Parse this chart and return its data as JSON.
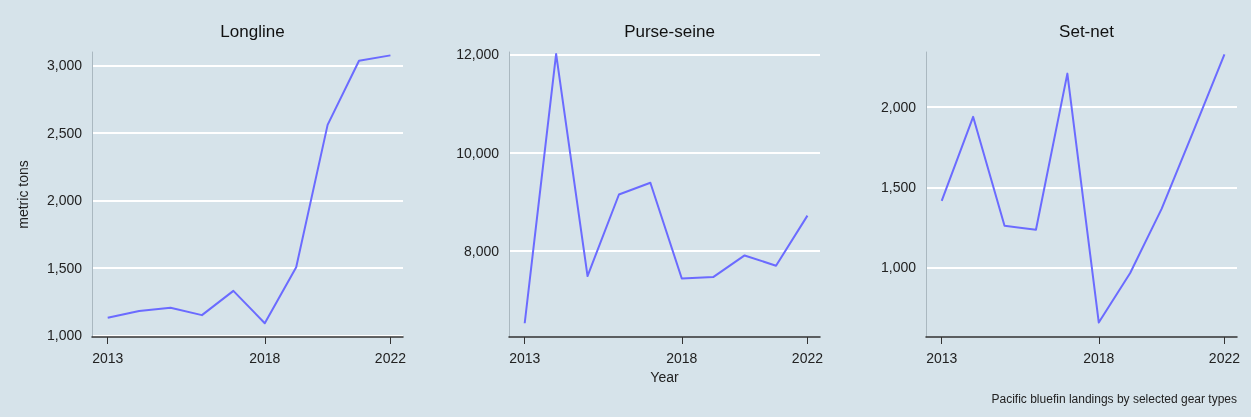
{
  "chart_data": [
    {
      "type": "line",
      "title": "Longline",
      "ylabel": "metric tons",
      "x": [
        2013,
        2014,
        2015,
        2016,
        2017,
        2018,
        2019,
        2020,
        2021,
        2022
      ],
      "xlim": [
        2012.5,
        2022.4
      ],
      "xticks": [
        2013,
        2018,
        2022
      ],
      "ylim": [
        988,
        3100
      ],
      "yticks": [
        {
          "value": 1000,
          "label": "1,000"
        },
        {
          "value": 1500,
          "label": "1,500"
        },
        {
          "value": 2000,
          "label": "2,000"
        },
        {
          "value": 2500,
          "label": "2,500"
        },
        {
          "value": 3000,
          "label": "3,000"
        }
      ],
      "grid": "y",
      "series": [
        {
          "color": "#6b6bff",
          "values": [
            1130,
            1180,
            1205,
            1150,
            1330,
            1090,
            1505,
            2560,
            3035,
            3075
          ]
        }
      ]
    },
    {
      "type": "line",
      "title": "Purse-seine",
      "xlabel": "Year",
      "x": [
        2013,
        2014,
        2015,
        2016,
        2017,
        2018,
        2019,
        2020,
        2021,
        2022
      ],
      "xlim": [
        2012.5,
        2022.4
      ],
      "xticks": [
        2013,
        2018,
        2022
      ],
      "ylim": [
        6250,
        12050
      ],
      "yticks": [
        {
          "value": 8000,
          "label": "8,000"
        },
        {
          "value": 10000,
          "label": "10,000"
        },
        {
          "value": 12000,
          "label": "12,000"
        }
      ],
      "grid": "y",
      "series": [
        {
          "color": "#6b6bff",
          "values": [
            6530,
            12010,
            7490,
            9150,
            9390,
            7440,
            7470,
            7910,
            7700,
            8720
          ]
        }
      ]
    },
    {
      "type": "line",
      "title": "Set-net",
      "x": [
        2013,
        2014,
        2015,
        2016,
        2017,
        2018,
        2019,
        2020,
        2021,
        2022
      ],
      "xlim": [
        2012.5,
        2022.4
      ],
      "xticks": [
        2013,
        2018,
        2022
      ],
      "ylim": [
        565,
        2345
      ],
      "yticks": [
        {
          "value": 1000,
          "label": "1,000"
        },
        {
          "value": 1500,
          "label": "1,500"
        },
        {
          "value": 2000,
          "label": "2,000"
        }
      ],
      "grid": "y",
      "annotations": [
        "Pacific bluefin landings by selected gear types"
      ],
      "series": [
        {
          "color": "#6b6bff",
          "values": [
            1415,
            1940,
            1260,
            1235,
            2210,
            655,
            965,
            1365,
            1845,
            2330
          ]
        }
      ]
    }
  ]
}
